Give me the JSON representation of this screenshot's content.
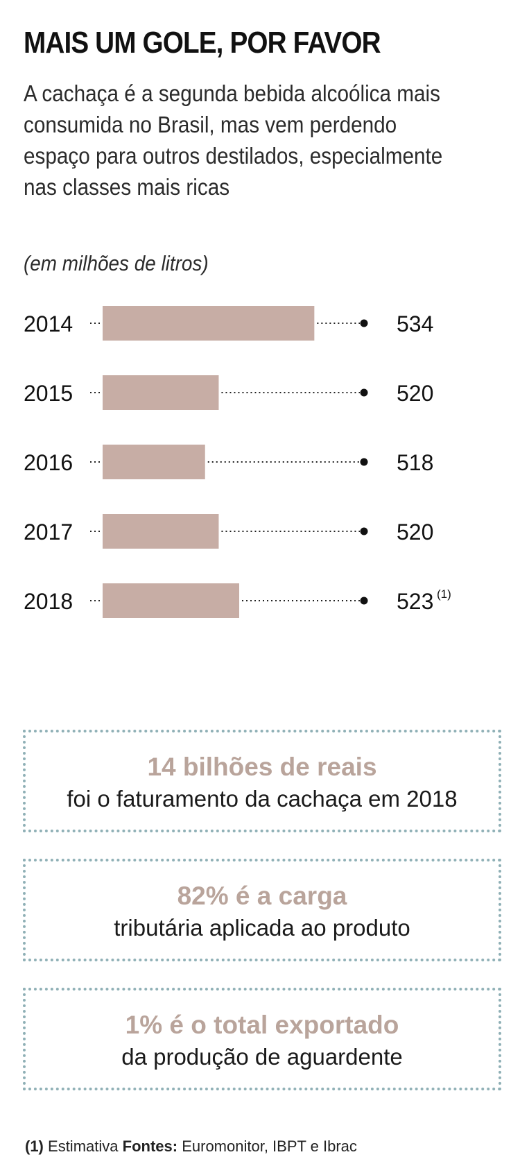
{
  "header": {
    "title": "MAIS UM GOLE, POR FAVOR",
    "subtitle": "A cachaça é a segunda bebida alcoólica mais consumida no Brasil, mas vem perdendo espaço para outros destilados, especialmente nas classes mais ricas",
    "unit_label": "(em milhões de litros)"
  },
  "chart_data": {
    "type": "bar",
    "orientation": "horizontal",
    "ylabel": "(em milhões de litros)",
    "categories": [
      "2014",
      "2015",
      "2016",
      "2017",
      "2018"
    ],
    "values": [
      534,
      520,
      518,
      520,
      523
    ],
    "value_labels": [
      "534",
      "520",
      "518",
      "520",
      "523"
    ],
    "footnote_marks": [
      "",
      "",
      "",
      "",
      "(1)"
    ],
    "xlim": [
      503,
      538
    ],
    "bar_color": "#c7ada5",
    "grid": false,
    "legend": "none"
  },
  "stats": [
    {
      "highlight": "14 bilhões de reais",
      "text": "foi o faturamento da cachaça em 2018"
    },
    {
      "highlight": "82% é a carga",
      "text": "tributária aplicada ao produto"
    },
    {
      "highlight": "1% é o total exportado",
      "text": "da produção de aguardente"
    }
  ],
  "footnote": {
    "mark": "(1)",
    "note": "Estimativa",
    "sources_label": "Fontes:",
    "sources": "Euromonitor, IBPT e Ibrac"
  },
  "colors": {
    "bar": "#c7ada5",
    "highlight_text": "#b9a49b",
    "box_border": "#8fb0b6",
    "text": "#111111"
  }
}
